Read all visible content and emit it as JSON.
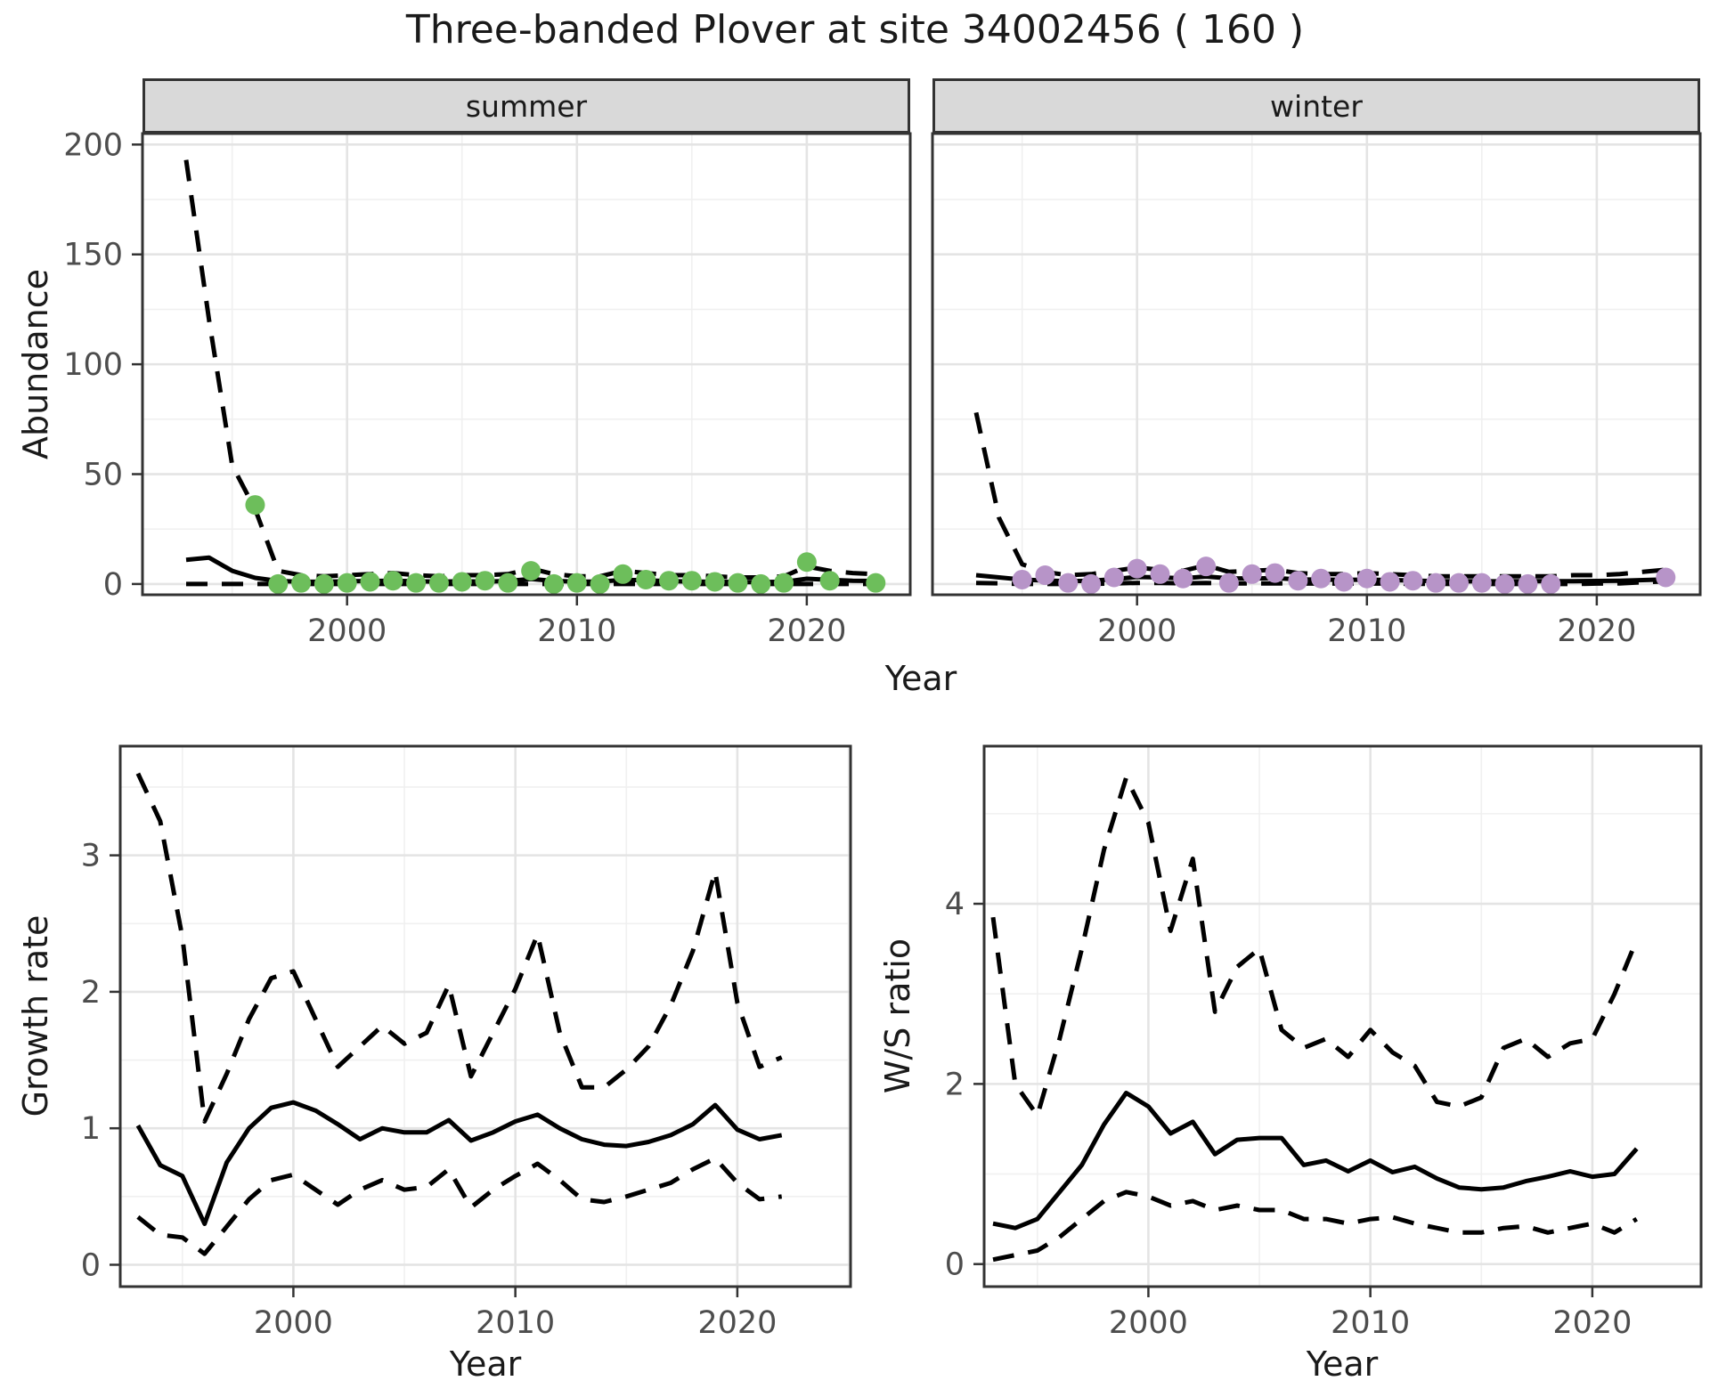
{
  "title": "Three-banded Plover at site 34002456 ( 160 )",
  "colors": {
    "summer_point": "#6DBE5B",
    "winter_point": "#B794C8",
    "line": "#000000",
    "strip_bg": "#D9D9D9",
    "panel_border": "#333333",
    "grid_major": "#E4E4E4",
    "grid_minor": "#F0F0F0",
    "tick_text": "#4D4D4D",
    "title_text": "#1A1A1A"
  },
  "chart_data": [
    {
      "id": "abundance",
      "type": "line+scatter",
      "xlabel": "Year",
      "ylabel": "Abundance",
      "legend_position": "none",
      "grid": true,
      "x_ticks": [
        2000,
        2010,
        2020
      ],
      "x_minor": [
        1995,
        2005,
        2015
      ],
      "y_ticks": [
        0,
        50,
        100,
        150,
        200
      ],
      "y_minor": [
        25,
        75,
        125,
        175
      ],
      "xlim": [
        1991.1,
        2024.5
      ],
      "ylim": [
        -4.9,
        205
      ],
      "line_styles": {
        "fit": "solid",
        "upper": "dashed",
        "lower": "dashed"
      },
      "facets": [
        {
          "name": "summer",
          "point_color": "#6DBE5B",
          "years": [
            1993,
            1994,
            1995,
            1996,
            1997,
            1998,
            1999,
            2000,
            2001,
            2002,
            2003,
            2004,
            2005,
            2006,
            2007,
            2008,
            2009,
            2010,
            2011,
            2012,
            2013,
            2014,
            2015,
            2016,
            2017,
            2018,
            2019,
            2020,
            2021,
            2022,
            2023
          ],
          "fit": [
            11,
            12,
            6,
            2.8,
            1.4,
            1,
            1,
            1.2,
            1.4,
            1.5,
            1.2,
            1.1,
            1.2,
            1.1,
            1.4,
            2.3,
            1.4,
            1.1,
            1.1,
            1.9,
            1.7,
            1.3,
            1.1,
            1,
            0.9,
            0.9,
            1,
            2.4,
            1.9,
            1.5,
            1.4
          ],
          "upper": [
            193,
            120,
            54,
            34,
            6,
            4,
            3.5,
            4,
            4.5,
            5,
            4,
            3.5,
            4,
            4,
            4.5,
            7,
            4.5,
            3.5,
            3.5,
            6,
            5,
            4,
            4,
            3.5,
            3,
            3,
            3.5,
            8,
            6,
            5,
            4.5
          ],
          "lower": [
            0,
            0,
            0,
            0,
            0,
            0,
            0,
            0,
            0,
            0,
            0,
            0,
            0,
            0,
            0,
            0,
            0,
            0,
            0,
            0,
            0,
            0,
            0,
            0,
            0,
            0,
            0,
            0,
            0,
            0,
            0
          ],
          "obs_years": [
            1996,
            1997,
            1998,
            1999,
            2000,
            2001,
            2002,
            2003,
            2004,
            2005,
            2006,
            2007,
            2008,
            2009,
            2010,
            2011,
            2012,
            2013,
            2014,
            2015,
            2016,
            2017,
            2018,
            2019,
            2020,
            2021,
            2023
          ],
          "obs_values": [
            36,
            0,
            0.5,
            0,
            0.5,
            1,
            1.5,
            0.5,
            0.5,
            1,
            1.5,
            0.5,
            6,
            0,
            0.5,
            0,
            4.5,
            2,
            1.5,
            1.5,
            1,
            0.5,
            0,
            0.5,
            10,
            1.5,
            0.5
          ]
        },
        {
          "name": "winter",
          "point_color": "#B794C8",
          "years": [
            1993,
            1994,
            1995,
            1996,
            1997,
            1998,
            1999,
            2000,
            2001,
            2002,
            2003,
            2004,
            2005,
            2006,
            2007,
            2008,
            2009,
            2010,
            2011,
            2012,
            2013,
            2014,
            2015,
            2016,
            2017,
            2018,
            2019,
            2020,
            2021,
            2022,
            2023
          ],
          "fit": [
            4,
            3,
            2,
            1.6,
            1.3,
            1.5,
            2.2,
            3.2,
            3,
            2.6,
            3.4,
            2.6,
            2.5,
            2.7,
            2.1,
            2,
            1.9,
            2,
            1.8,
            1.6,
            1.3,
            1.2,
            1.2,
            1.2,
            1.3,
            1.3,
            1.3,
            1.4,
            1.5,
            1.8,
            2.1
          ],
          "upper": [
            78,
            30,
            9,
            5.5,
            4,
            4.5,
            6,
            7.5,
            6.5,
            6,
            8.5,
            5.5,
            6,
            6.5,
            5,
            4.5,
            4.5,
            5,
            4.5,
            4,
            3.5,
            3.5,
            3.5,
            3.5,
            3.5,
            3.5,
            4,
            4,
            4.5,
            5.5,
            6.5
          ],
          "lower": [
            0.5,
            0.3,
            0,
            0,
            0,
            0,
            0.3,
            0.5,
            0.5,
            0.3,
            0.5,
            0.3,
            0.3,
            0.3,
            0.2,
            0.2,
            0.2,
            0.2,
            0.2,
            0.1,
            0.1,
            0,
            0,
            0,
            0,
            0,
            0,
            0.2,
            0.3,
            0.8,
            1.2
          ],
          "obs_years": [
            1995,
            1996,
            1997,
            1998,
            1999,
            2000,
            2001,
            2002,
            2003,
            2004,
            2005,
            2006,
            2007,
            2008,
            2009,
            2010,
            2011,
            2012,
            2013,
            2014,
            2015,
            2016,
            2017,
            2018,
            2023
          ],
          "obs_values": [
            2,
            4,
            0.5,
            0,
            3,
            7,
            4.5,
            2.5,
            8,
            0.5,
            4.5,
            5,
            1.5,
            2.5,
            1,
            2.5,
            1,
            1.5,
            0.5,
            0.5,
            0.5,
            0,
            0,
            0,
            3
          ]
        }
      ]
    },
    {
      "id": "growth_rate",
      "type": "line",
      "xlabel": "Year",
      "ylabel": "Growth rate",
      "grid": true,
      "x_ticks": [
        2000,
        2010,
        2020
      ],
      "x_minor": [
        1995,
        2005,
        2015,
        2025
      ],
      "y_ticks": [
        0,
        1,
        2,
        3
      ],
      "y_minor": [
        0.5,
        1.5,
        2.5,
        3.5
      ],
      "xlim": [
        1992.2,
        2025.1
      ],
      "ylim": [
        -0.16,
        3.8
      ],
      "line_styles": {
        "fit": "solid",
        "upper": "dashed",
        "lower": "dashed"
      },
      "years": [
        1993,
        1994,
        1995,
        1996,
        1997,
        1998,
        1999,
        2000,
        2001,
        2002,
        2003,
        2004,
        2005,
        2006,
        2007,
        2008,
        2009,
        2010,
        2011,
        2012,
        2013,
        2014,
        2015,
        2016,
        2017,
        2018,
        2019,
        2020,
        2021,
        2022
      ],
      "fit": [
        1.02,
        0.73,
        0.65,
        0.3,
        0.75,
        1.0,
        1.15,
        1.19,
        1.13,
        1.03,
        0.92,
        1.0,
        0.97,
        0.97,
        1.06,
        0.91,
        0.97,
        1.05,
        1.1,
        1.0,
        0.92,
        0.88,
        0.87,
        0.9,
        0.95,
        1.03,
        1.17,
        0.99,
        0.92,
        0.95
      ],
      "upper": [
        3.6,
        3.25,
        2.4,
        1.05,
        1.4,
        1.8,
        2.1,
        2.15,
        1.8,
        1.45,
        1.6,
        1.75,
        1.62,
        1.7,
        2.05,
        1.38,
        1.7,
        2.02,
        2.42,
        1.7,
        1.3,
        1.3,
        1.43,
        1.6,
        1.9,
        2.3,
        2.88,
        1.92,
        1.45,
        1.52
      ],
      "lower": [
        0.35,
        0.22,
        0.2,
        0.08,
        0.28,
        0.48,
        0.62,
        0.66,
        0.55,
        0.44,
        0.55,
        0.62,
        0.55,
        0.57,
        0.7,
        0.42,
        0.55,
        0.65,
        0.74,
        0.62,
        0.48,
        0.46,
        0.5,
        0.55,
        0.6,
        0.7,
        0.78,
        0.6,
        0.48,
        0.5
      ]
    },
    {
      "id": "ws_ratio",
      "type": "line",
      "xlabel": "Year",
      "ylabel": "W/S ratio",
      "grid": true,
      "x_ticks": [
        2000,
        2010,
        2020
      ],
      "x_minor": [
        1995,
        2005,
        2015
      ],
      "y_ticks": [
        0,
        2,
        4
      ],
      "y_minor": [
        1,
        3,
        5
      ],
      "xlim": [
        1992.6,
        2024.9
      ],
      "ylim": [
        -0.25,
        5.75
      ],
      "line_styles": {
        "fit": "solid",
        "upper": "dashed",
        "lower": "dashed"
      },
      "years": [
        1993,
        1994,
        1995,
        1996,
        1997,
        1998,
        1999,
        2000,
        2001,
        2002,
        2003,
        2004,
        2005,
        2006,
        2007,
        2008,
        2009,
        2010,
        2011,
        2012,
        2013,
        2014,
        2015,
        2016,
        2017,
        2018,
        2019,
        2020,
        2021,
        2022
      ],
      "fit": [
        0.45,
        0.4,
        0.5,
        0.8,
        1.1,
        1.55,
        1.9,
        1.75,
        1.45,
        1.58,
        1.22,
        1.38,
        1.4,
        1.4,
        1.1,
        1.15,
        1.03,
        1.15,
        1.02,
        1.08,
        0.95,
        0.85,
        0.83,
        0.85,
        0.92,
        0.97,
        1.03,
        0.97,
        1.0,
        1.28
      ],
      "upper": [
        3.85,
        2.0,
        1.65,
        2.5,
        3.5,
        4.6,
        5.4,
        4.9,
        3.7,
        4.5,
        2.8,
        3.3,
        3.5,
        2.6,
        2.4,
        2.5,
        2.3,
        2.6,
        2.35,
        2.2,
        1.8,
        1.75,
        1.85,
        2.4,
        2.5,
        2.3,
        2.45,
        2.5,
        3.0,
        3.6
      ],
      "lower": [
        0.05,
        0.1,
        0.15,
        0.3,
        0.5,
        0.7,
        0.8,
        0.75,
        0.65,
        0.7,
        0.6,
        0.65,
        0.6,
        0.6,
        0.5,
        0.5,
        0.45,
        0.5,
        0.52,
        0.45,
        0.4,
        0.35,
        0.35,
        0.4,
        0.42,
        0.35,
        0.4,
        0.45,
        0.35,
        0.5
      ]
    }
  ]
}
